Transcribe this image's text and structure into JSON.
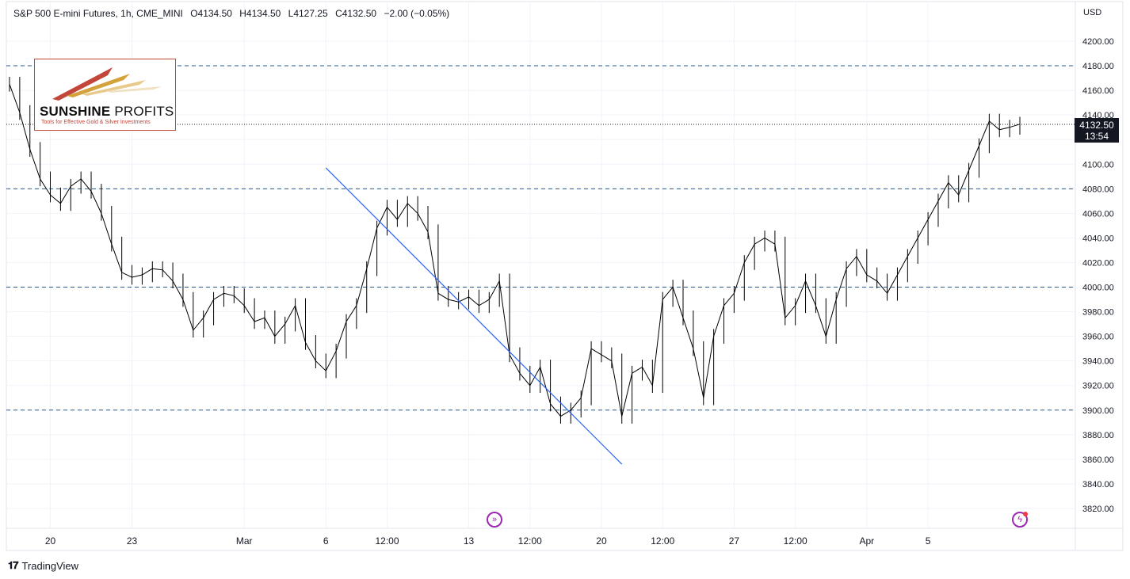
{
  "header": {
    "symbol": "S&P 500 E-mini Futures, 1h, CME_MINI",
    "open": "O4134.50",
    "high": "H4134.50",
    "low": "L4127.25",
    "close": "C4132.50",
    "change": "−2.00 (−0.05%)"
  },
  "axis_currency": "USD",
  "current_price": {
    "value": "4132.50",
    "countdown": "13:54"
  },
  "logo": {
    "name_bold": "SUNSHINE",
    "name_rest": " PROFITS",
    "tagline": "Tools for Effective Gold & Silver Investments"
  },
  "footer": {
    "brand": "TradingView",
    "brand_icon": "tradingview-logo-icon"
  },
  "events": [
    {
      "icon": "fast-forward-event-icon",
      "x_label": "13"
    },
    {
      "icon": "lightning-event-icon",
      "x_label": "Apr"
    }
  ],
  "colors": {
    "candle": "#000000",
    "trendline": "#2962ff",
    "hline": "#2a5a8a",
    "grid": "#f0f3fa",
    "event": "#9c27b0",
    "logo_red": "#c2463a"
  },
  "chart_data": {
    "type": "line",
    "title": "S&P 500 E-mini Futures, 1h, CME_MINI",
    "ylim": [
      3810,
      4215
    ],
    "y_ticks": [
      3820,
      3840,
      3860,
      3880,
      3900,
      3920,
      3940,
      3960,
      3980,
      4000,
      4020,
      4040,
      4060,
      4080,
      4100,
      4120,
      4140,
      4160,
      4180,
      4200
    ],
    "x_ticks": [
      "20",
      "23",
      "Mar",
      "6",
      "12:00",
      "13",
      "12:00",
      "20",
      "12:00",
      "27",
      "12:00",
      "Apr",
      "5"
    ],
    "x_tick_index": [
      4,
      12,
      23,
      31,
      37,
      45,
      51,
      58,
      64,
      71,
      77,
      84,
      90
    ],
    "grid": true,
    "horizontal_levels": [
      4180,
      4080,
      4000,
      3900
    ],
    "trendline": {
      "from": [
        31,
        4097
      ],
      "to": [
        60,
        3856
      ]
    },
    "series": [
      {
        "values": [
          4165,
          4142,
          4112,
          4088,
          4075,
          4068,
          4082,
          4088,
          4078,
          4060,
          4035,
          4012,
          4008,
          4010,
          4015,
          4014,
          4005,
          3990,
          3965,
          3975,
          3990,
          3995,
          3993,
          3985,
          3972,
          3975,
          3960,
          3970,
          3985,
          3955,
          3940,
          3932,
          3948,
          3972,
          3985,
          4015,
          4048,
          4065,
          4055,
          4068,
          4060,
          4045,
          3995,
          3990,
          3988,
          3992,
          3985,
          3990,
          4005,
          3945,
          3930,
          3920,
          3935,
          3905,
          3895,
          3900,
          3910,
          3950,
          3945,
          3940,
          3895,
          3930,
          3935,
          3920,
          3990,
          4000,
          3975,
          3950,
          3910,
          3960,
          3985,
          3995,
          4020,
          4035,
          4040,
          4035,
          3975,
          3985,
          4005,
          3985,
          3960,
          3990,
          4015,
          4025,
          4010,
          4005,
          3995,
          4010,
          4025,
          4040,
          4055,
          4070,
          4085,
          4075,
          4095,
          4115,
          4135,
          4128,
          4130,
          4132.5
        ]
      }
    ]
  }
}
